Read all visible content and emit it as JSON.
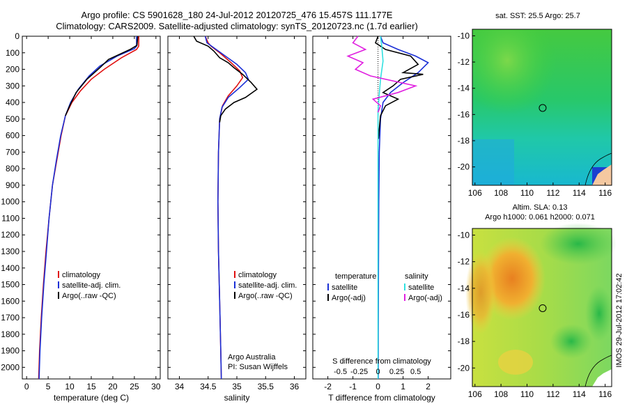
{
  "header": {
    "line1": "Argo profile: CS 5901628_180 24-Jul-2012 20120725_476 15.457S 111.177E",
    "line2": "Climatology: CARS2009. Satellite-adjusted climatology: synTS_20120723.nc (1.7d earlier)"
  },
  "colors": {
    "climatology": "#e01010",
    "satellite": "#1a2fd6",
    "argo": "#000000",
    "sat_salinity": "#30e0e0",
    "argo_salinity": "#e020e0"
  },
  "chart_data": [
    {
      "type": "line",
      "name": "temperature-panel",
      "xlabel": "temperature (deg C)",
      "xlim": [
        -1,
        31
      ],
      "ylim": [
        0,
        2070
      ],
      "xticks": [
        "0",
        "5",
        "10",
        "15",
        "20",
        "25",
        "30"
      ],
      "xtick_values": [
        0,
        5,
        10,
        15,
        20,
        25,
        30
      ],
      "yticks": [
        "0",
        "100",
        "200",
        "300",
        "400",
        "500",
        "600",
        "700",
        "800",
        "900",
        "1000",
        "1100",
        "1200",
        "1300",
        "1400",
        "1500",
        "1600",
        "1700",
        "1800",
        "1900",
        "2000"
      ],
      "ytick_values": [
        0,
        100,
        200,
        300,
        400,
        500,
        600,
        700,
        800,
        900,
        1000,
        1100,
        1200,
        1300,
        1400,
        1500,
        1600,
        1700,
        1800,
        1900,
        2000
      ],
      "legend": [
        "climatology",
        "satellite-adj. clim.",
        "Argo(..raw -QC)"
      ],
      "series": [
        {
          "name": "climatology",
          "color": "#e01010",
          "points": [
            [
              26,
              0
            ],
            [
              26,
              60
            ],
            [
              25.5,
              80
            ],
            [
              22,
              130
            ],
            [
              18,
              200
            ],
            [
              15,
              260
            ],
            [
              12.5,
              330
            ],
            [
              10.5,
              400
            ],
            [
              9,
              480
            ],
            [
              8,
              600
            ],
            [
              7,
              750
            ],
            [
              6,
              900
            ],
            [
              5.2,
              1100
            ],
            [
              4.5,
              1300
            ],
            [
              3.9,
              1500
            ],
            [
              3.4,
              1700
            ],
            [
              3,
              1900
            ],
            [
              2.8,
              2070
            ]
          ]
        },
        {
          "name": "satellite-adj. clim.",
          "color": "#1a2fd6",
          "points": [
            [
              25.5,
              0
            ],
            [
              25.5,
              60
            ],
            [
              25,
              75
            ],
            [
              21,
              120
            ],
            [
              17,
              180
            ],
            [
              14.5,
              240
            ],
            [
              12,
              320
            ],
            [
              10.2,
              400
            ],
            [
              9,
              480
            ],
            [
              7.9,
              600
            ],
            [
              6.9,
              750
            ],
            [
              6,
              900
            ],
            [
              5.2,
              1100
            ],
            [
              4.6,
              1300
            ],
            [
              4,
              1500
            ],
            [
              3.5,
              1700
            ],
            [
              3.1,
              1900
            ],
            [
              2.9,
              2070
            ]
          ]
        },
        {
          "name": "Argo(..raw -QC)",
          "color": "#000000",
          "points": [
            [
              25.8,
              0
            ],
            [
              25.6,
              55
            ],
            [
              24,
              80
            ],
            [
              19,
              140
            ],
            [
              17,
              190
            ],
            [
              14,
              260
            ],
            [
              11.5,
              340
            ],
            [
              10,
              420
            ],
            [
              9,
              480
            ]
          ]
        }
      ]
    },
    {
      "type": "line",
      "name": "salinity-panel",
      "xlabel": "salinity",
      "xlim": [
        33.8,
        36.2
      ],
      "ylim": [
        0,
        2070
      ],
      "xticks": [
        "34",
        "34.5",
        "35",
        "35.5",
        "36"
      ],
      "xtick_values": [
        34,
        34.5,
        35,
        35.5,
        36
      ],
      "legend": [
        "climatology",
        "satellite-adj. clim.",
        "Argo(..raw -QC)"
      ],
      "annotation": [
        "Argo Australia",
        "PI: Susan Wijffels"
      ],
      "series": [
        {
          "name": "climatology",
          "color": "#e01010",
          "points": [
            [
              34.45,
              0
            ],
            [
              34.5,
              40
            ],
            [
              34.55,
              60
            ],
            [
              34.7,
              100
            ],
            [
              34.9,
              160
            ],
            [
              35.05,
              210
            ],
            [
              35.1,
              250
            ],
            [
              35,
              300
            ],
            [
              34.85,
              360
            ],
            [
              34.75,
              420
            ],
            [
              34.7,
              500
            ],
            [
              34.68,
              700
            ],
            [
              34.67,
              1000
            ],
            [
              34.68,
              1300
            ],
            [
              34.7,
              1600
            ],
            [
              34.72,
              1900
            ],
            [
              34.73,
              2070
            ]
          ]
        },
        {
          "name": "satellite-adj. clim.",
          "color": "#1a2fd6",
          "points": [
            [
              34.45,
              0
            ],
            [
              34.48,
              40
            ],
            [
              34.6,
              70
            ],
            [
              34.8,
              120
            ],
            [
              35,
              170
            ],
            [
              35.15,
              220
            ],
            [
              35.2,
              260
            ],
            [
              35.05,
              310
            ],
            [
              34.85,
              370
            ],
            [
              34.74,
              430
            ],
            [
              34.7,
              500
            ],
            [
              34.68,
              700
            ],
            [
              34.67,
              1000
            ],
            [
              34.68,
              1300
            ],
            [
              34.7,
              1600
            ],
            [
              34.72,
              1900
            ],
            [
              34.73,
              2070
            ]
          ]
        },
        {
          "name": "Argo(..raw -QC)",
          "color": "#000000",
          "points": [
            [
              34.25,
              0
            ],
            [
              34.3,
              30
            ],
            [
              34.5,
              60
            ],
            [
              34.6,
              90
            ],
            [
              34.7,
              130
            ],
            [
              34.85,
              160
            ],
            [
              34.95,
              190
            ],
            [
              35.1,
              230
            ],
            [
              35.25,
              280
            ],
            [
              35.35,
              320
            ],
            [
              35.15,
              370
            ],
            [
              34.95,
              400
            ],
            [
              34.8,
              440
            ],
            [
              34.72,
              480
            ],
            [
              34.7,
              520
            ]
          ]
        }
      ]
    },
    {
      "type": "line",
      "name": "difference-panel",
      "xlabel": "T difference from climatology",
      "xlabel_top": "S difference from climatology",
      "xlim": [
        -2.6,
        2.9
      ],
      "ylim": [
        0,
        2070
      ],
      "xticks": [
        "-2",
        "-1",
        "0",
        "1",
        "2"
      ],
      "xtick_values": [
        -2,
        -1,
        0,
        1,
        2
      ],
      "sticks": [
        "-0.5",
        "-0.25",
        "0",
        "0.25",
        "0.5"
      ],
      "stick_values": [
        -1.5,
        -0.75,
        0,
        0.75,
        1.5
      ],
      "legend_headers": [
        "temperature",
        "salinity"
      ],
      "legend": [
        "satellite",
        "Argo(-adj)",
        "satellite",
        "Argo(-adj)"
      ],
      "series": [
        {
          "name": "satellite",
          "color": "#1a2fd6",
          "points": [
            [
              0.1,
              0
            ],
            [
              0.2,
              40
            ],
            [
              0.8,
              80
            ],
            [
              1.5,
              120
            ],
            [
              2,
              160
            ],
            [
              1.6,
              220
            ],
            [
              1,
              280
            ],
            [
              0.5,
              340
            ],
            [
              0.2,
              400
            ],
            [
              0.1,
              500
            ],
            [
              0.05,
              700
            ],
            [
              0.03,
              1000
            ],
            [
              0.02,
              1400
            ],
            [
              0.01,
              1800
            ],
            [
              0.01,
              2070
            ]
          ]
        },
        {
          "name": "Argo(-adj)",
          "color": "#000000",
          "points": [
            [
              0,
              0
            ],
            [
              -0.1,
              40
            ],
            [
              0.3,
              80
            ],
            [
              1.3,
              120
            ],
            [
              1.6,
              170
            ],
            [
              1,
              220
            ],
            [
              1.8,
              230
            ],
            [
              0.9,
              260
            ],
            [
              0.6,
              300
            ],
            [
              0.2,
              340
            ],
            [
              0.8,
              380
            ],
            [
              0.3,
              420
            ],
            [
              0.1,
              480
            ],
            [
              0.05,
              560
            ],
            [
              0.02,
              620
            ]
          ]
        },
        {
          "name": "satellite-sal",
          "color": "#30e0e0",
          "points": [
            [
              0.1,
              0
            ],
            [
              0.15,
              60
            ],
            [
              0.2,
              150
            ],
            [
              0.1,
              260
            ],
            [
              0.05,
              350
            ],
            [
              0,
              450
            ],
            [
              0,
              700
            ],
            [
              0,
              1000
            ],
            [
              0,
              1400
            ],
            [
              0,
              1800
            ],
            [
              0,
              2070
            ]
          ]
        },
        {
          "name": "Argo(-adj)-sal",
          "color": "#e020e0",
          "points": [
            [
              -0.8,
              0
            ],
            [
              -1,
              40
            ],
            [
              -0.5,
              80
            ],
            [
              -1.2,
              120
            ],
            [
              -0.6,
              160
            ],
            [
              -0.9,
              200
            ],
            [
              -0.3,
              240
            ],
            [
              1.5,
              300
            ],
            [
              0.8,
              340
            ],
            [
              -0.2,
              380
            ],
            [
              0.1,
              420
            ],
            [
              0,
              460
            ]
          ]
        }
      ]
    },
    {
      "type": "heatmap",
      "name": "sst-map",
      "title": "sat. SST: 25.5 Argo: 25.7",
      "xlim": [
        105.8,
        116.5
      ],
      "ylim": [
        -21.4,
        -9.5
      ],
      "xticks": [
        "106",
        "108",
        "110",
        "112",
        "114",
        "116"
      ],
      "xtick_values": [
        106,
        108,
        110,
        112,
        114,
        116
      ],
      "yticks": [
        "-10",
        "-12",
        "-14",
        "-16",
        "-18",
        "-20"
      ],
      "ytick_values": [
        -10,
        -12,
        -14,
        -16,
        -18,
        -20
      ],
      "marker": [
        111.2,
        -15.5
      ]
    },
    {
      "type": "heatmap",
      "name": "sla-map",
      "title": [
        "Altim. SLA: 0.13",
        "Argo h1000: 0.061 h2000: 0.071"
      ],
      "xlim": [
        105.8,
        116.5
      ],
      "ylim": [
        -21.4,
        -9.5
      ],
      "xticks": [
        "106",
        "108",
        "110",
        "112",
        "114",
        "116"
      ],
      "xtick_values": [
        106,
        108,
        110,
        112,
        114,
        116
      ],
      "yticks": [
        "-10",
        "-12",
        "-14",
        "-16",
        "-18",
        "-20"
      ],
      "ytick_values": [
        -10,
        -12,
        -14,
        -16,
        -18,
        -20
      ],
      "marker": [
        111.2,
        -15.5
      ]
    }
  ],
  "footer_stamp": "IMOS 29-Jul-2012 17:02:42"
}
